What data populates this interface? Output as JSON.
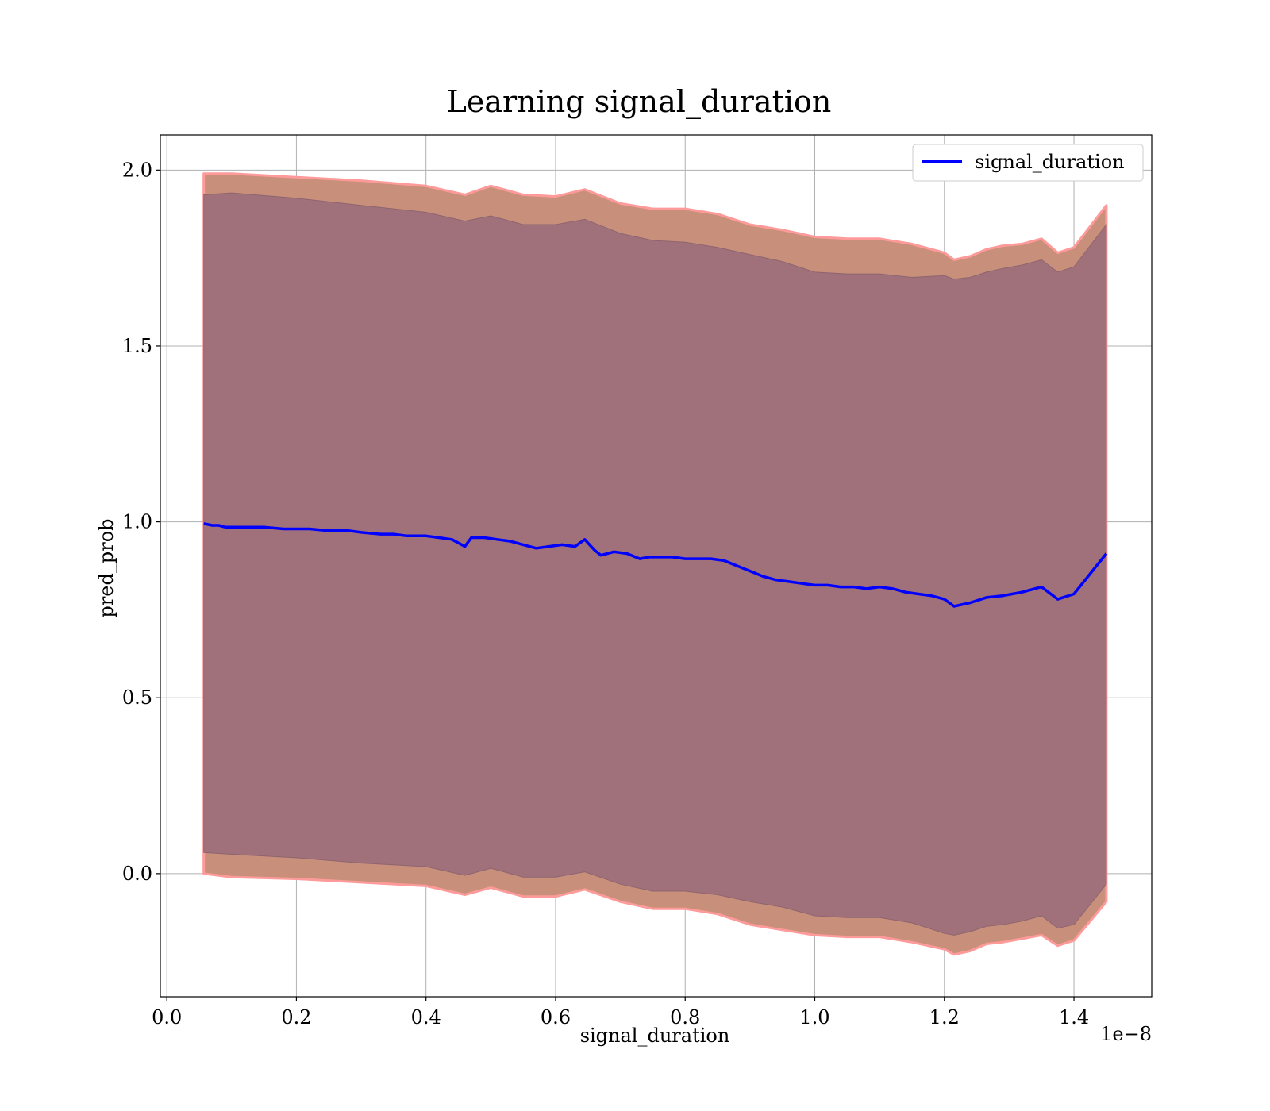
{
  "chart_data": {
    "type": "line",
    "title": "Learning signal_duration",
    "xlabel": "signal_duration",
    "ylabel": "pred_prob",
    "x_offset_label": "1e−8",
    "xlim": [
      -0.01,
      1.52
    ],
    "ylim": [
      -0.35,
      2.1
    ],
    "x_ticks": [
      0.0,
      0.2,
      0.4,
      0.6,
      0.8,
      1.0,
      1.2,
      1.4
    ],
    "x_tick_labels": [
      "0.0",
      "0.2",
      "0.4",
      "0.6",
      "0.8",
      "1.0",
      "1.2",
      "1.4"
    ],
    "y_ticks": [
      0.0,
      0.5,
      1.0,
      1.5,
      2.0
    ],
    "y_tick_labels": [
      "0.0",
      "0.5",
      "1.0",
      "1.5",
      "2.0"
    ],
    "grid": true,
    "legend_position": "top-right",
    "colors": {
      "line": "#0000ff",
      "outer_band": "#c8907a",
      "outer_band_edge": "#ff9a9a",
      "inner_band": "#a0717a"
    },
    "series": [
      {
        "name": "signal_duration",
        "x": [
          0.057,
          0.07,
          0.08,
          0.09,
          0.1,
          0.12,
          0.15,
          0.18,
          0.2,
          0.22,
          0.25,
          0.28,
          0.3,
          0.33,
          0.35,
          0.37,
          0.4,
          0.42,
          0.44,
          0.46,
          0.47,
          0.49,
          0.51,
          0.53,
          0.55,
          0.57,
          0.59,
          0.61,
          0.63,
          0.645,
          0.66,
          0.67,
          0.69,
          0.71,
          0.73,
          0.745,
          0.76,
          0.78,
          0.8,
          0.82,
          0.84,
          0.86,
          0.88,
          0.9,
          0.92,
          0.94,
          0.96,
          0.98,
          1.0,
          1.02,
          1.04,
          1.06,
          1.08,
          1.1,
          1.12,
          1.14,
          1.16,
          1.18,
          1.2,
          1.215,
          1.24,
          1.265,
          1.29,
          1.32,
          1.35,
          1.375,
          1.4,
          1.45
        ],
        "y": [
          0.995,
          0.99,
          0.99,
          0.985,
          0.985,
          0.985,
          0.985,
          0.98,
          0.98,
          0.98,
          0.975,
          0.975,
          0.97,
          0.965,
          0.965,
          0.96,
          0.96,
          0.955,
          0.95,
          0.93,
          0.955,
          0.955,
          0.95,
          0.945,
          0.935,
          0.925,
          0.93,
          0.935,
          0.93,
          0.95,
          0.92,
          0.905,
          0.915,
          0.91,
          0.895,
          0.9,
          0.9,
          0.9,
          0.895,
          0.895,
          0.895,
          0.89,
          0.875,
          0.86,
          0.845,
          0.835,
          0.83,
          0.825,
          0.82,
          0.82,
          0.815,
          0.815,
          0.81,
          0.815,
          0.81,
          0.8,
          0.795,
          0.79,
          0.78,
          0.76,
          0.77,
          0.785,
          0.79,
          0.8,
          0.815,
          0.78,
          0.795,
          0.91
        ]
      }
    ],
    "bands": [
      {
        "id": "outer",
        "x": [
          0.057,
          0.1,
          0.2,
          0.3,
          0.4,
          0.46,
          0.5,
          0.55,
          0.6,
          0.645,
          0.7,
          0.75,
          0.8,
          0.85,
          0.9,
          0.95,
          1.0,
          1.05,
          1.1,
          1.15,
          1.2,
          1.215,
          1.24,
          1.265,
          1.29,
          1.32,
          1.35,
          1.375,
          1.4,
          1.45
        ],
        "upper": [
          1.99,
          1.99,
          1.98,
          1.97,
          1.955,
          1.93,
          1.955,
          1.93,
          1.925,
          1.945,
          1.905,
          1.89,
          1.89,
          1.875,
          1.845,
          1.83,
          1.81,
          1.805,
          1.805,
          1.79,
          1.765,
          1.745,
          1.755,
          1.775,
          1.785,
          1.79,
          1.805,
          1.765,
          1.78,
          1.9
        ],
        "lower": [
          0.0,
          -0.01,
          -0.015,
          -0.025,
          -0.035,
          -0.06,
          -0.04,
          -0.065,
          -0.065,
          -0.045,
          -0.08,
          -0.1,
          -0.1,
          -0.115,
          -0.145,
          -0.16,
          -0.175,
          -0.18,
          -0.18,
          -0.195,
          -0.215,
          -0.23,
          -0.22,
          -0.2,
          -0.195,
          -0.185,
          -0.175,
          -0.205,
          -0.19,
          -0.08
        ]
      },
      {
        "id": "inner",
        "x": [
          0.057,
          0.1,
          0.2,
          0.3,
          0.4,
          0.46,
          0.5,
          0.55,
          0.6,
          0.645,
          0.7,
          0.75,
          0.8,
          0.85,
          0.9,
          0.95,
          1.0,
          1.05,
          1.1,
          1.15,
          1.2,
          1.215,
          1.24,
          1.265,
          1.29,
          1.32,
          1.35,
          1.375,
          1.4,
          1.45
        ],
        "upper": [
          1.93,
          1.935,
          1.92,
          1.9,
          1.88,
          1.855,
          1.87,
          1.845,
          1.845,
          1.86,
          1.82,
          1.8,
          1.795,
          1.78,
          1.76,
          1.74,
          1.71,
          1.705,
          1.705,
          1.695,
          1.7,
          1.69,
          1.695,
          1.71,
          1.72,
          1.73,
          1.745,
          1.71,
          1.725,
          1.845
        ],
        "lower": [
          0.06,
          0.055,
          0.045,
          0.03,
          0.02,
          -0.005,
          0.015,
          -0.01,
          -0.01,
          0.005,
          -0.03,
          -0.05,
          -0.05,
          -0.06,
          -0.08,
          -0.095,
          -0.12,
          -0.125,
          -0.125,
          -0.14,
          -0.17,
          -0.175,
          -0.165,
          -0.15,
          -0.145,
          -0.135,
          -0.12,
          -0.155,
          -0.145,
          -0.03
        ]
      }
    ]
  }
}
